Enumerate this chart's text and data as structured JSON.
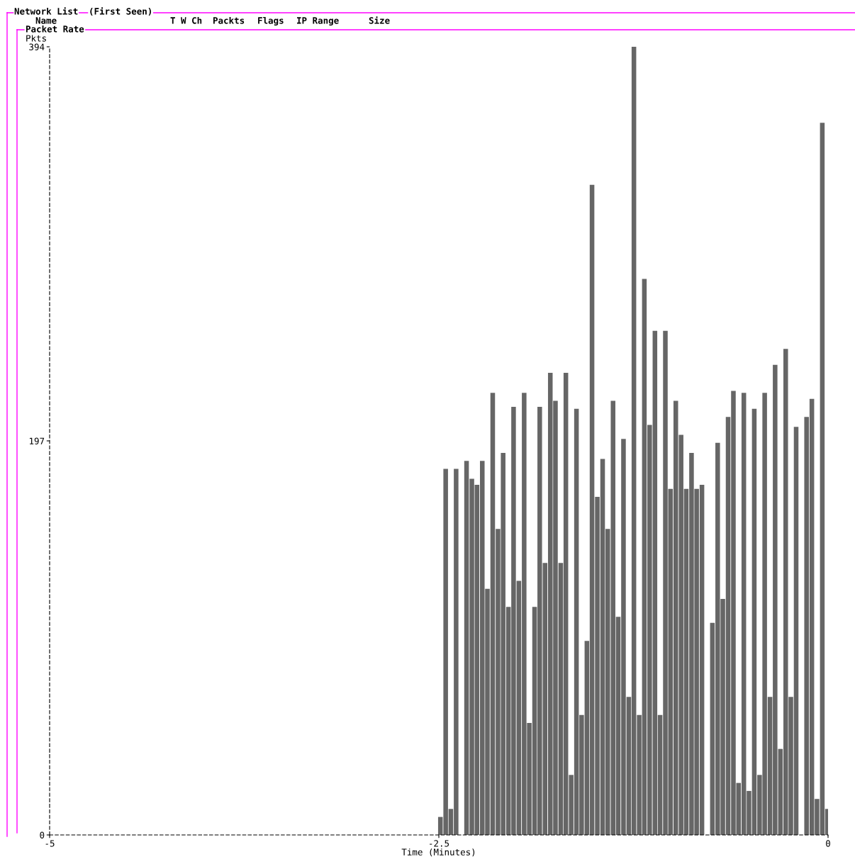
{
  "chart_data": {
    "type": "bar",
    "title": "Packet Rate",
    "ylabel": "Pkts",
    "xlabel": "Time (Minutes)",
    "annotations": [
      "Network List",
      "(First Seen)",
      "Name",
      "T W Ch",
      "Packts",
      "Flags",
      "IP Range",
      "Size"
    ],
    "x": [
      -2.49,
      -2.456,
      -2.423,
      -2.389,
      -2.356,
      -2.322,
      -2.288,
      -2.255,
      -2.221,
      -2.188,
      -2.154,
      -2.12,
      -2.087,
      -2.053,
      -2.02,
      -1.986,
      -1.952,
      -1.919,
      -1.885,
      -1.852,
      -1.818,
      -1.784,
      -1.751,
      -1.717,
      -1.684,
      -1.65,
      -1.616,
      -1.583,
      -1.549,
      -1.516,
      -1.482,
      -1.448,
      -1.415,
      -1.381,
      -1.348,
      -1.314,
      -1.28,
      -1.247,
      -1.213,
      -1.18,
      -1.146,
      -1.112,
      -1.079,
      -1.045,
      -1.012,
      -0.978,
      -0.944,
      -0.911,
      -0.877,
      -0.844,
      -0.81,
      -0.776,
      -0.743,
      -0.709,
      -0.676,
      -0.642,
      -0.608,
      -0.575,
      -0.541,
      -0.508,
      -0.474,
      -0.44,
      -0.407,
      -0.373,
      -0.34,
      -0.306,
      -0.272,
      -0.239,
      -0.205,
      -0.172,
      -0.138,
      -0.104,
      -0.071,
      -0.037,
      -0.004
    ],
    "values": [
      9,
      183,
      13,
      183,
      0,
      187,
      178,
      175,
      187,
      123,
      221,
      153,
      191,
      114,
      214,
      127,
      221,
      56,
      114,
      214,
      136,
      231,
      217,
      136,
      231,
      30,
      213,
      60,
      97,
      325,
      169,
      188,
      153,
      217,
      109,
      198,
      69,
      394,
      60,
      278,
      205,
      252,
      60,
      252,
      173,
      217,
      200,
      173,
      191,
      173,
      175,
      0,
      106,
      196,
      118,
      209,
      222,
      26,
      221,
      22,
      213,
      30,
      221,
      69,
      235,
      43,
      243,
      69,
      204,
      0,
      209,
      218,
      18,
      356,
      13
    ],
    "color": "#666666",
    "xlim": [
      -5,
      0
    ],
    "xticks": [
      -5,
      -2.5,
      0
    ],
    "ylim": [
      0,
      394
    ],
    "yticks": [
      0,
      197,
      394
    ],
    "grid": false
  }
}
